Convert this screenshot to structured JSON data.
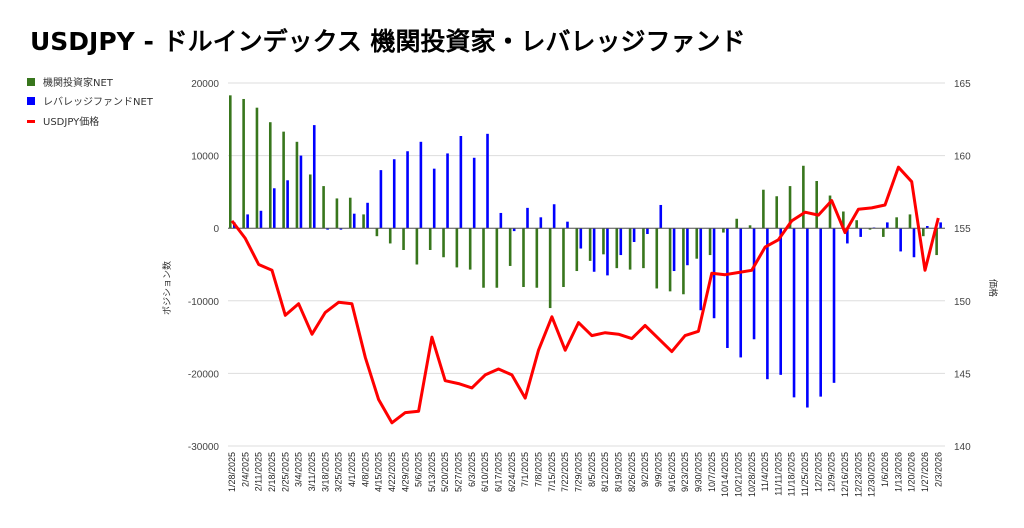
{
  "chart_data": {
    "type": "bar",
    "title": "USDJPY - ドルインデックス 機関投資家・レバレッジファンド",
    "ylabel": "ポジション数",
    "ylabel_right": "価格",
    "xlabel": "",
    "ylim": [
      -30000,
      20000
    ],
    "ylim_right": [
      140,
      165
    ],
    "yticks": [
      20000,
      10000,
      0,
      -10000,
      -20000,
      -30000
    ],
    "yticks_right": [
      165,
      160,
      155,
      150,
      145,
      140
    ],
    "grid": true,
    "legend_position": "left",
    "colors": {
      "institutional": "#38761d",
      "leveraged": "#0000ff",
      "price": "#ff0000"
    },
    "categories": [
      "1/28/2025",
      "2/4/2025",
      "2/11/2025",
      "2/18/2025",
      "2/25/2025",
      "3/4/2025",
      "3/11/2025",
      "3/18/2025",
      "3/25/2025",
      "4/1/2025",
      "4/8/2025",
      "4/15/2025",
      "4/22/2025",
      "4/29/2025",
      "5/6/2025",
      "5/13/2025",
      "5/20/2025",
      "5/27/2025",
      "6/3/2025",
      "6/10/2025",
      "6/17/2025",
      "6/24/2025",
      "7/1/2025",
      "7/8/2025",
      "7/15/2025",
      "7/22/2025",
      "7/29/2025",
      "8/5/2025",
      "8/12/2025",
      "8/19/2025",
      "8/26/2025",
      "9/2/2025",
      "9/9/2025",
      "9/16/2025",
      "9/23/2025",
      "9/30/2025",
      "10/7/2025",
      "10/14/2025",
      "10/21/2025",
      "10/28/2025",
      "11/4/2025",
      "11/11/2025",
      "11/18/2025",
      "11/25/2025",
      "12/2/2025",
      "12/9/2025",
      "12/16/2025",
      "12/23/2025",
      "12/30/2025",
      "1/6/2026",
      "1/13/2026",
      "1/20/2026",
      "1/27/2026",
      "2/3/2026"
    ],
    "series": [
      {
        "name": "機関投資家NET",
        "type": "bar",
        "axis": "left",
        "values": [
          18300,
          17800,
          16600,
          14600,
          13300,
          11900,
          7400,
          5800,
          4100,
          4200,
          1900,
          -1100,
          -2100,
          -3000,
          -5000,
          -3000,
          -4000,
          -5400,
          -5700,
          -8200,
          -8200,
          -5200,
          -8100,
          -8200,
          -11000,
          -8100,
          -5900,
          -4500,
          -3600,
          -5500,
          -5700,
          -5500,
          -8300,
          -8700,
          -9100,
          -4200,
          -3700,
          -600,
          1300,
          400,
          5300,
          4400,
          5800,
          8600,
          6500,
          4500,
          2300,
          1100,
          -200,
          -1200,
          1500,
          1900,
          -1100,
          -3700
        ]
      },
      {
        "name": "レバレッジファンドNET",
        "type": "bar",
        "axis": "left",
        "values": [
          800,
          1900,
          2400,
          5500,
          6600,
          10000,
          14200,
          -200,
          -200,
          2000,
          3500,
          8000,
          9500,
          10600,
          11900,
          8200,
          10300,
          12700,
          9700,
          13000,
          2100,
          -400,
          2800,
          1500,
          3300,
          900,
          -2800,
          -6000,
          -6500,
          -3700,
          -1900,
          -800,
          3200,
          -5900,
          -5100,
          -11300,
          -12400,
          -16500,
          -17800,
          -15300,
          -20800,
          -20200,
          -23300,
          -24700,
          -23200,
          -21300,
          -2100,
          -1200,
          100,
          800,
          -3200,
          -4000,
          300,
          800
        ]
      },
      {
        "name": "USDJPY価格",
        "type": "line",
        "axis": "right",
        "values": [
          155.5,
          154.3,
          152.5,
          152.1,
          149.0,
          149.8,
          147.7,
          149.2,
          149.9,
          149.8,
          146.1,
          143.2,
          141.6,
          142.3,
          142.4,
          147.5,
          144.5,
          144.3,
          144.0,
          144.9,
          145.3,
          144.9,
          143.3,
          146.6,
          148.9,
          146.6,
          148.5,
          147.6,
          147.8,
          147.7,
          147.4,
          148.3,
          147.4,
          146.5,
          147.6,
          147.9,
          151.9,
          151.8,
          151.95,
          152.1,
          153.7,
          154.2,
          155.5,
          156.1,
          155.9,
          156.9,
          154.7,
          156.3,
          156.4,
          156.6,
          159.2,
          158.2,
          152.1,
          155.7
        ]
      }
    ]
  }
}
